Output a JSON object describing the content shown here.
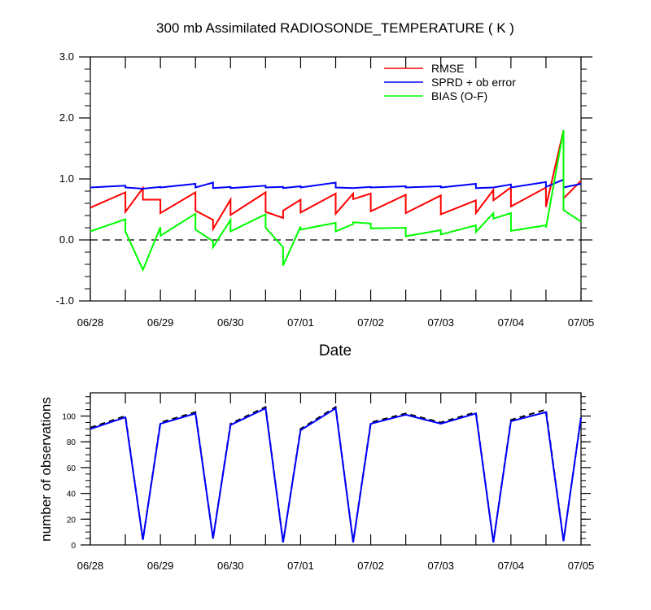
{
  "chart_data": [
    {
      "type": "line",
      "title": "300 mb Assimilated RADIOSONDE_TEMPERATURE ( K )",
      "xlabel": "Date",
      "ylabel": "",
      "xlim": [
        0,
        7
      ],
      "ylim": [
        -1.0,
        3.0
      ],
      "x_tick_labels": [
        "06/28",
        "06/29",
        "06/30",
        "07/01",
        "07/02",
        "07/03",
        "07/04",
        "07/05"
      ],
      "x_tick_values": [
        0,
        1,
        2,
        3,
        4,
        5,
        6,
        7
      ],
      "y_tick_labels": [
        "-1.0",
        "0.0",
        "1.0",
        "2.0",
        "3.0"
      ],
      "y_tick_values": [
        -1,
        0,
        1,
        2,
        3
      ],
      "zero_line": true,
      "legend_position": "top-right",
      "series": [
        {
          "name": "RMSE",
          "color": "#ff0000",
          "points": [
            [
              0,
              0.53
            ],
            [
              0.5,
              0.78
            ],
            [
              0.5,
              0.46
            ],
            [
              0.75,
              0.85
            ],
            [
              0.75,
              0.66
            ],
            [
              1.0,
              0.66
            ],
            [
              1.0,
              0.44
            ],
            [
              1.5,
              0.78
            ],
            [
              1.5,
              0.48
            ],
            [
              1.75,
              0.33
            ],
            [
              1.75,
              0.18
            ],
            [
              2.0,
              0.66
            ],
            [
              2.0,
              0.41
            ],
            [
              2.5,
              0.78
            ],
            [
              2.5,
              0.46
            ],
            [
              2.75,
              0.36
            ],
            [
              2.75,
              0.48
            ],
            [
              3.0,
              0.66
            ],
            [
              3.0,
              0.45
            ],
            [
              3.5,
              0.76
            ],
            [
              3.5,
              0.43
            ],
            [
              3.75,
              0.76
            ],
            [
              3.75,
              0.67
            ],
            [
              4.0,
              0.76
            ],
            [
              4.0,
              0.47
            ],
            [
              4.5,
              0.74
            ],
            [
              4.5,
              0.44
            ],
            [
              5.0,
              0.73
            ],
            [
              5.0,
              0.42
            ],
            [
              5.5,
              0.65
            ],
            [
              5.5,
              0.44
            ],
            [
              5.75,
              0.82
            ],
            [
              5.75,
              0.65
            ],
            [
              6.0,
              0.86
            ],
            [
              6.0,
              0.55
            ],
            [
              6.5,
              0.86
            ],
            [
              6.5,
              0.54
            ],
            [
              6.75,
              1.8
            ],
            [
              6.75,
              0.68
            ],
            [
              7.0,
              0.97
            ]
          ]
        },
        {
          "name": "SPRD + ob error",
          "color": "#0000ff",
          "points": [
            [
              0,
              0.86
            ],
            [
              0.5,
              0.89
            ],
            [
              0.5,
              0.86
            ],
            [
              0.75,
              0.84
            ],
            [
              1.0,
              0.87
            ],
            [
              1.0,
              0.86
            ],
            [
              1.5,
              0.92
            ],
            [
              1.5,
              0.86
            ],
            [
              1.75,
              0.94
            ],
            [
              1.75,
              0.85
            ],
            [
              2.0,
              0.87
            ],
            [
              2.0,
              0.85
            ],
            [
              2.5,
              0.89
            ],
            [
              2.5,
              0.86
            ],
            [
              2.75,
              0.87
            ],
            [
              2.75,
              0.85
            ],
            [
              3.0,
              0.88
            ],
            [
              3.0,
              0.86
            ],
            [
              3.5,
              0.94
            ],
            [
              3.5,
              0.86
            ],
            [
              3.75,
              0.85
            ],
            [
              4.0,
              0.87
            ],
            [
              4.0,
              0.86
            ],
            [
              4.5,
              0.88
            ],
            [
              4.5,
              0.86
            ],
            [
              5.0,
              0.88
            ],
            [
              5.0,
              0.86
            ],
            [
              5.5,
              0.92
            ],
            [
              5.5,
              0.85
            ],
            [
              5.75,
              0.86
            ],
            [
              6.0,
              0.91
            ],
            [
              6.0,
              0.86
            ],
            [
              6.5,
              0.95
            ],
            [
              6.5,
              0.87
            ],
            [
              6.75,
              0.99
            ],
            [
              6.75,
              0.86
            ],
            [
              7.0,
              0.92
            ]
          ]
        },
        {
          "name": "BIAS (O-F)",
          "color": "#00ff00",
          "points": [
            [
              0,
              0.14
            ],
            [
              0.5,
              0.34
            ],
            [
              0.5,
              0.14
            ],
            [
              0.75,
              -0.49
            ],
            [
              1.0,
              0.21
            ],
            [
              1.0,
              0.07
            ],
            [
              1.5,
              0.43
            ],
            [
              1.5,
              0.17
            ],
            [
              1.75,
              -0.02
            ],
            [
              1.75,
              -0.12
            ],
            [
              2.0,
              0.33
            ],
            [
              2.0,
              0.14
            ],
            [
              2.5,
              0.42
            ],
            [
              2.5,
              0.2
            ],
            [
              2.75,
              -0.12
            ],
            [
              2.75,
              -0.42
            ],
            [
              3.0,
              0.22
            ],
            [
              3.0,
              0.17
            ],
            [
              3.5,
              0.28
            ],
            [
              3.5,
              0.14
            ],
            [
              3.75,
              0.26
            ],
            [
              3.75,
              0.29
            ],
            [
              4.0,
              0.27
            ],
            [
              4.0,
              0.19
            ],
            [
              4.5,
              0.2
            ],
            [
              4.5,
              0.06
            ],
            [
              5.0,
              0.16
            ],
            [
              5.0,
              0.09
            ],
            [
              5.5,
              0.24
            ],
            [
              5.5,
              0.13
            ],
            [
              5.75,
              0.44
            ],
            [
              5.75,
              0.35
            ],
            [
              6.0,
              0.44
            ],
            [
              6.0,
              0.15
            ],
            [
              6.5,
              0.24
            ],
            [
              6.5,
              0.2
            ],
            [
              6.75,
              1.8
            ],
            [
              6.75,
              0.49
            ],
            [
              7.0,
              0.3
            ]
          ]
        }
      ]
    },
    {
      "type": "line",
      "title": "",
      "xlabel": "",
      "ylabel": "number of observations",
      "xlim": [
        0,
        7
      ],
      "ylim": [
        0,
        118
      ],
      "x_tick_labels": [
        "06/28",
        "06/29",
        "06/30",
        "07/01",
        "07/02",
        "07/03",
        "07/04",
        "07/05"
      ],
      "x_tick_values": [
        0,
        1,
        2,
        3,
        4,
        5,
        6,
        7
      ],
      "y_tick_labels": [
        "0",
        "20",
        "40",
        "60",
        "80",
        "100"
      ],
      "y_tick_values": [
        0,
        20,
        40,
        60,
        80,
        100
      ],
      "series": [
        {
          "style": "dashed",
          "color": "#000000",
          "points": [
            [
              0,
              91
            ],
            [
              0.5,
              100
            ],
            [
              0.75,
              4
            ],
            [
              1.0,
              95
            ],
            [
              1.5,
              103
            ],
            [
              1.75,
              5
            ],
            [
              2.0,
              94
            ],
            [
              2.5,
              107
            ],
            [
              2.75,
              2
            ],
            [
              3.0,
              90
            ],
            [
              3.5,
              107
            ],
            [
              3.75,
              2
            ],
            [
              4.0,
              95
            ],
            [
              4.5,
              102
            ],
            [
              5.0,
              95
            ],
            [
              5.5,
              103
            ],
            [
              5.75,
              2
            ],
            [
              6.0,
              97
            ],
            [
              6.5,
              105
            ],
            [
              6.75,
              3
            ],
            [
              7.0,
              99
            ]
          ]
        },
        {
          "style": "solid",
          "color": "#0000ff",
          "points": [
            [
              0,
              90
            ],
            [
              0.5,
              99
            ],
            [
              0.75,
              4
            ],
            [
              1.0,
              94
            ],
            [
              1.5,
              102
            ],
            [
              1.75,
              5
            ],
            [
              2.0,
              93
            ],
            [
              2.5,
              106
            ],
            [
              2.75,
              2
            ],
            [
              3.0,
              89
            ],
            [
              3.5,
              106
            ],
            [
              3.75,
              2
            ],
            [
              4.0,
              94
            ],
            [
              4.5,
              101
            ],
            [
              5.0,
              94
            ],
            [
              5.5,
              102
            ],
            [
              5.75,
              2
            ],
            [
              6.0,
              96
            ],
            [
              6.5,
              103
            ],
            [
              6.75,
              3
            ],
            [
              7.0,
              99
            ]
          ]
        }
      ]
    }
  ]
}
